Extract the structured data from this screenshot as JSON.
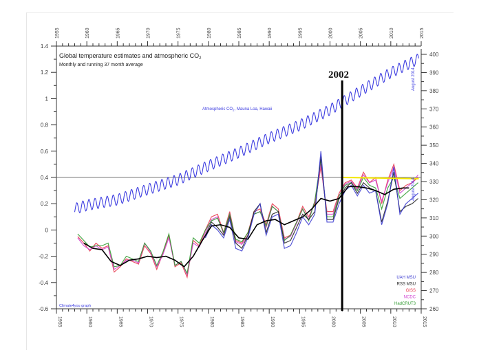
{
  "chart_data": {
    "type": "line",
    "title": "Global temperature estimates and atmospheric CO2",
    "title_main": "Global temperature estimates and atmospheric CO",
    "title_sub": "2",
    "subtitle": "Monthly and running 37 month average",
    "credit": "Climate4you graph",
    "co2_label": "Atmospheric CO2, Mauna Loa, Hawaii",
    "co2_label_main": "Atmospheric CO",
    "co2_label_sub": "2",
    "co2_label_rest": ", Mauna Loa, Hawaii",
    "annotation": "2002",
    "end_label_co2": "August 2014",
    "end_label_temp": "August 2014",
    "xlim": [
      1955,
      2015
    ],
    "ylim_left": [
      -0.6,
      1.4
    ],
    "ylim_right": [
      260,
      400
    ],
    "x_ticks": [
      "1955",
      "1960",
      "1965",
      "1970",
      "1975",
      "1980",
      "1985",
      "1990",
      "1995",
      "2000",
      "2005",
      "2010",
      "2015"
    ],
    "y_left_ticks": [
      "-0.6",
      "-0.4",
      "-0.2",
      "0",
      "0.2",
      "0.4",
      "0.6",
      "0.8",
      "1",
      "1.2",
      "1.4"
    ],
    "y_right_ticks": [
      "260",
      "270",
      "280",
      "290",
      "300",
      "310",
      "320",
      "330",
      "340",
      "350",
      "360",
      "370",
      "380",
      "390",
      "400"
    ],
    "reference_line_y": 0.4,
    "vertical_marker_x": 2002,
    "trend_line": {
      "x": [
        2002,
        2014.6
      ],
      "y": [
        0.4,
        0.39
      ],
      "color": "#f2e600"
    },
    "years": [
      1958,
      1959,
      1960,
      1961,
      1962,
      1963,
      1964,
      1965,
      1966,
      1967,
      1968,
      1969,
      1970,
      1971,
      1972,
      1973,
      1974,
      1975,
      1976,
      1977,
      1978,
      1979,
      1980,
      1981,
      1982,
      1983,
      1984,
      1985,
      1986,
      1987,
      1988,
      1989,
      1990,
      1991,
      1992,
      1993,
      1994,
      1995,
      1996,
      1997,
      1998,
      1999,
      2000,
      2001,
      2002,
      2003,
      2004,
      2005,
      2006,
      2007,
      2008,
      2009,
      2010,
      2011,
      2012,
      2013,
      2014
    ],
    "series": [
      {
        "name": "GISS",
        "color": "#e8344a",
        "start": 1958,
        "values": [
          -0.05,
          -0.1,
          -0.16,
          -0.1,
          -0.14,
          -0.12,
          -0.32,
          -0.28,
          -0.22,
          -0.24,
          -0.26,
          -0.12,
          -0.18,
          -0.3,
          -0.18,
          -0.04,
          -0.28,
          -0.25,
          -0.36,
          -0.08,
          -0.12,
          0.0,
          0.1,
          0.12,
          -0.02,
          0.14,
          -0.08,
          -0.1,
          -0.02,
          0.14,
          0.16,
          0.04,
          0.2,
          0.16,
          -0.06,
          -0.04,
          0.06,
          0.18,
          0.1,
          0.2,
          0.48,
          0.14,
          0.14,
          0.28,
          0.36,
          0.38,
          0.32,
          0.44,
          0.36,
          0.4,
          0.2,
          0.38,
          0.5,
          0.3,
          0.34,
          0.36,
          0.4
        ]
      },
      {
        "name": "NCDC",
        "color": "#d040d0",
        "start": 1958,
        "values": [
          -0.06,
          -0.12,
          -0.15,
          -0.12,
          -0.15,
          -0.13,
          -0.3,
          -0.27,
          -0.23,
          -0.23,
          -0.25,
          -0.1,
          -0.17,
          -0.28,
          -0.19,
          -0.06,
          -0.27,
          -0.24,
          -0.34,
          -0.1,
          -0.13,
          -0.02,
          0.08,
          0.1,
          -0.03,
          0.12,
          -0.09,
          -0.11,
          -0.04,
          0.12,
          0.14,
          0.02,
          0.18,
          0.14,
          -0.07,
          -0.05,
          0.05,
          0.16,
          0.08,
          0.22,
          0.5,
          0.12,
          0.12,
          0.26,
          0.35,
          0.37,
          0.31,
          0.42,
          0.36,
          0.38,
          0.22,
          0.36,
          0.48,
          0.28,
          0.32,
          0.36,
          0.42
        ]
      },
      {
        "name": "HadCRUT3",
        "color": "#2e9a2e",
        "start": 1958,
        "values": [
          -0.03,
          -0.08,
          -0.13,
          -0.12,
          -0.12,
          -0.1,
          -0.28,
          -0.27,
          -0.2,
          -0.22,
          -0.24,
          -0.1,
          -0.16,
          -0.27,
          -0.17,
          -0.03,
          -0.27,
          -0.24,
          -0.33,
          -0.06,
          -0.1,
          0.0,
          0.07,
          0.09,
          -0.02,
          0.12,
          -0.07,
          -0.09,
          -0.02,
          0.12,
          0.14,
          0.03,
          0.18,
          0.14,
          -0.08,
          -0.04,
          0.06,
          0.16,
          0.07,
          0.22,
          0.54,
          0.1,
          0.1,
          0.26,
          0.34,
          0.36,
          0.3,
          0.4,
          0.34,
          0.32,
          0.16,
          0.32,
          0.4,
          0.24,
          0.28,
          0.32,
          0.36
        ]
      },
      {
        "name": "RSS MSU",
        "color": "#222222",
        "start": 1979,
        "values": [
          -0.04,
          0.06,
          0.02,
          -0.04,
          0.1,
          -0.1,
          -0.14,
          -0.04,
          0.14,
          0.2,
          -0.02,
          0.12,
          0.14,
          -0.1,
          -0.08,
          0.02,
          0.12,
          0.08,
          0.14,
          0.56,
          0.08,
          0.08,
          0.24,
          0.32,
          0.36,
          0.28,
          0.36,
          0.32,
          0.3,
          0.06,
          0.22,
          0.44,
          0.14,
          0.18,
          0.2,
          0.24
        ]
      },
      {
        "name": "UAH MSU",
        "color": "#3a3ad0",
        "start": 1979,
        "values": [
          -0.06,
          0.04,
          0.0,
          -0.06,
          0.08,
          -0.14,
          -0.16,
          -0.06,
          0.12,
          0.2,
          -0.04,
          0.1,
          0.12,
          -0.14,
          -0.12,
          -0.02,
          0.1,
          0.04,
          0.12,
          0.6,
          0.06,
          0.06,
          0.2,
          0.3,
          0.34,
          0.26,
          0.34,
          0.28,
          0.3,
          0.04,
          0.2,
          0.48,
          0.12,
          0.2,
          0.24,
          0.28
        ]
      }
    ],
    "running_average": {
      "color": "#000000",
      "x": [
        1959.5,
        1961,
        1962.5,
        1964,
        1965.5,
        1967,
        1968.5,
        1970,
        1971.5,
        1973,
        1974.5,
        1976,
        1977.5,
        1979,
        1980.5,
        1982,
        1983.5,
        1985,
        1986.5,
        1988,
        1989.5,
        1991,
        1992.5,
        1994,
        1995.5,
        1997,
        1998.5,
        2000,
        2001.5,
        2003,
        2004.5,
        2006,
        2007.5,
        2009,
        2010.5,
        2012,
        2013
      ],
      "y": [
        -0.1,
        -0.14,
        -0.15,
        -0.24,
        -0.27,
        -0.23,
        -0.22,
        -0.2,
        -0.21,
        -0.2,
        -0.23,
        -0.28,
        -0.2,
        -0.08,
        0.03,
        0.04,
        0.02,
        -0.06,
        -0.07,
        0.04,
        0.07,
        0.08,
        0.04,
        0.07,
        0.1,
        0.16,
        0.24,
        0.22,
        0.24,
        0.33,
        0.33,
        0.32,
        0.3,
        0.27,
        0.31,
        0.32,
        0.32
      ]
    },
    "co2": {
      "color": "#3c3ce0",
      "seasonal_amplitude": 3,
      "x": [
        1958,
        1960,
        1965,
        1970,
        1975,
        1980,
        1985,
        1990,
        1995,
        2000,
        2005,
        2010,
        2014.6
      ],
      "y": [
        315,
        317,
        320,
        325.7,
        331,
        338.7,
        346,
        354,
        361,
        369.5,
        379.8,
        389.9,
        397.5
      ]
    }
  }
}
